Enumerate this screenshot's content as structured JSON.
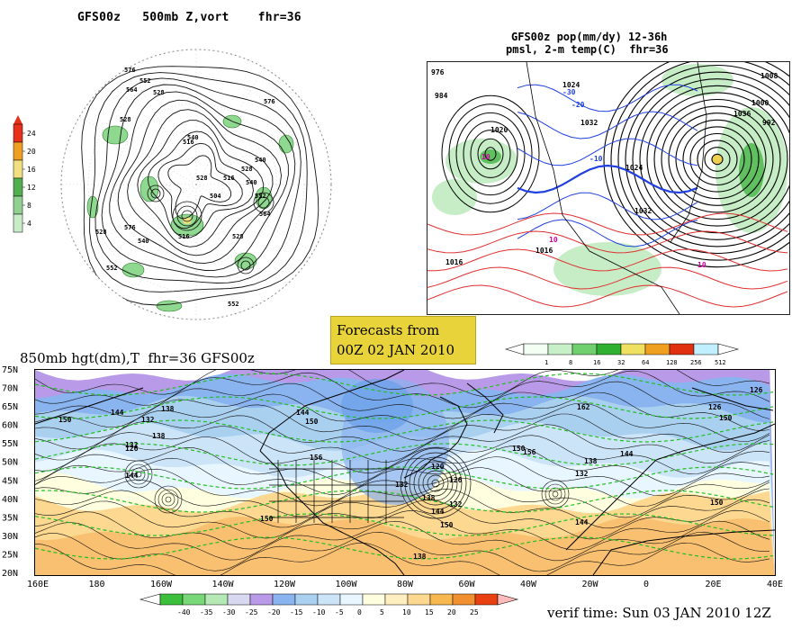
{
  "panel_500mb": {
    "title": "GFS00z   500mb Z,vort    fhr=36",
    "scale_labels": [
      "24",
      "20",
      "16",
      "12",
      "8",
      "4"
    ],
    "scale_colors": [
      "#e8301a",
      "#f0a020",
      "#f0e080",
      "#50b050",
      "#90d090",
      "#c8ecc8"
    ],
    "contour_labels": [
      "576",
      "564",
      "552",
      "528",
      "528",
      "516",
      "540",
      "528",
      "540",
      "516",
      "504",
      "528",
      "540",
      "552",
      "564",
      "576",
      "516",
      "528",
      "552",
      "564",
      "576",
      "528",
      "540",
      "552"
    ]
  },
  "panel_pmsl": {
    "title_line1": "GFS00z pop(mm/dy) 12-36h",
    "title_line2": "pmsl, 2-m temp(C)  fhr=36",
    "contour_labels": [
      "976",
      "1020",
      "1024",
      "1032",
      "984",
      "1008",
      "1000",
      "992",
      "-20",
      "-30",
      "-10",
      "10",
      "10",
      "10",
      "1032",
      "1024",
      "1016",
      "1036",
      "1016"
    ],
    "scale_labels": [
      "1",
      "8",
      "16",
      "32",
      "64",
      "128",
      "256",
      "512"
    ],
    "scale_colors": [
      "#f2fff2",
      "#c8f0c8",
      "#70d070",
      "#30b030",
      "#f0e060",
      "#f0a020",
      "#e03010",
      "#c0f0ff"
    ]
  },
  "forecast_box": {
    "line1": "Forecasts from",
    "line2": "00Z 02 JAN 2010"
  },
  "panel_850mb": {
    "title": "850mb hgt(dm),T  fhr=36 GFS00z",
    "lat_labels": [
      "75N",
      "70N",
      "65N",
      "60N",
      "55N",
      "50N",
      "45N",
      "40N",
      "35N",
      "30N",
      "25N",
      "20N"
    ],
    "lon_labels": [
      "160E",
      "180",
      "160W",
      "140W",
      "120W",
      "100W",
      "80W",
      "60W",
      "40W",
      "20W",
      "0",
      "20E",
      "40E"
    ],
    "contour_labels": [
      "150",
      "144",
      "138",
      "132",
      "126",
      "138",
      "144",
      "150",
      "156",
      "132",
      "138",
      "144",
      "150",
      "156",
      "162",
      "132",
      "126",
      "126",
      "150",
      "144",
      "138",
      "132",
      "120",
      "126",
      "132",
      "138",
      "144",
      "150",
      "144",
      "150",
      "150"
    ],
    "scale_labels": [
      "-40",
      "-35",
      "-30",
      "-25",
      "-20",
      "-15",
      "-10",
      "-5",
      "0",
      "5",
      "10",
      "15",
      "20",
      "25"
    ],
    "scale_colors": [
      "#3cc03c",
      "#78d878",
      "#b4e8b4",
      "#d8d8f0",
      "#b89ae8",
      "#8ab4f0",
      "#aad0f0",
      "#cce4f8",
      "#e8f6ff",
      "#ffffe0",
      "#ffeec0",
      "#fcd890",
      "#f8b850",
      "#f09030",
      "#e84010"
    ],
    "verif_time": "verif time: Sun 03 JAN 2010 12Z"
  },
  "colors": {
    "blue_contour": "#2040e0",
    "red_contour": "#e03030",
    "green_dash": "#20c020",
    "black": "#000000"
  }
}
